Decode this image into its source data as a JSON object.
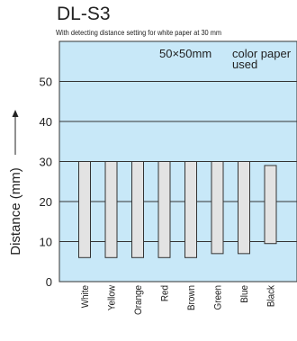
{
  "chart_data": {
    "type": "bar",
    "model": "DL-S3",
    "title": "With detecting distance setting for white paper at 30 mm",
    "annotation_size": "50×50mm",
    "annotation_note_line1": "color paper",
    "annotation_note_line2": "used",
    "ylabel": "Distance (mm)",
    "xlabel": "",
    "ylim": [
      0,
      60
    ],
    "yticks": [
      0,
      10,
      20,
      30,
      40,
      50
    ],
    "categories": [
      "White",
      "Yellow",
      "Orange",
      "Red",
      "Brown",
      "Green",
      "Blue",
      "Black"
    ],
    "ranges": [
      {
        "low": 6,
        "high": 30
      },
      {
        "low": 6,
        "high": 30
      },
      {
        "low": 6,
        "high": 30
      },
      {
        "low": 6,
        "high": 30
      },
      {
        "low": 6,
        "high": 30
      },
      {
        "low": 7,
        "high": 30
      },
      {
        "low": 7,
        "high": 30
      },
      {
        "low": 9.5,
        "high": 29
      }
    ],
    "colors": {
      "plot_background": "#c8e8f8",
      "bar_fill": "#e3e3e3",
      "bar_stroke": "#333333",
      "grid": "#333333"
    },
    "grid": true
  }
}
